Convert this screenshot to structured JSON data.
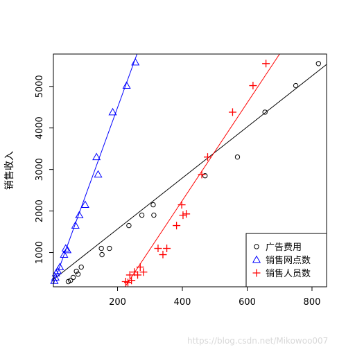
{
  "chart_data": {
    "type": "scatter",
    "title": "",
    "xlabel": "",
    "ylabel": "销售收入",
    "xlim": [
      2,
      845
    ],
    "ylim": [
      175,
      5780
    ],
    "x_ticks": [
      200,
      400,
      600,
      800
    ],
    "y_ticks": [
      1000,
      2000,
      3000,
      4000,
      5000
    ],
    "grid": false,
    "legend_position": "bottom-right",
    "series": [
      {
        "name": "广告费用",
        "marker": "circle",
        "color": "#000000",
        "fit_line": {
          "x": [
            2,
            845
          ],
          "y": [
            350,
            5530
          ]
        },
        "points": [
          {
            "x": 48,
            "y": 300
          },
          {
            "x": 55,
            "y": 330
          },
          {
            "x": 63,
            "y": 400
          },
          {
            "x": 73,
            "y": 550
          },
          {
            "x": 78,
            "y": 480
          },
          {
            "x": 88,
            "y": 650
          },
          {
            "x": 150,
            "y": 1100
          },
          {
            "x": 152,
            "y": 950
          },
          {
            "x": 175,
            "y": 1100
          },
          {
            "x": 235,
            "y": 1650
          },
          {
            "x": 275,
            "y": 1900
          },
          {
            "x": 310,
            "y": 2150
          },
          {
            "x": 312,
            "y": 1900
          },
          {
            "x": 470,
            "y": 2850
          },
          {
            "x": 570,
            "y": 3300
          },
          {
            "x": 655,
            "y": 4380
          },
          {
            "x": 750,
            "y": 5020
          },
          {
            "x": 820,
            "y": 5550
          }
        ]
      },
      {
        "name": "销售网点数",
        "marker": "triangle",
        "color": "#0000ff",
        "fit_line": {
          "x": [
            2,
            260
          ],
          "y": [
            240,
            5780
          ]
        },
        "points": [
          {
            "x": 5,
            "y": 320
          },
          {
            "x": 8,
            "y": 400
          },
          {
            "x": 10,
            "y": 500
          },
          {
            "x": 15,
            "y": 560
          },
          {
            "x": 22,
            "y": 650
          },
          {
            "x": 35,
            "y": 950
          },
          {
            "x": 40,
            "y": 1100
          },
          {
            "x": 45,
            "y": 1060
          },
          {
            "x": 70,
            "y": 1650
          },
          {
            "x": 82,
            "y": 1900
          },
          {
            "x": 100,
            "y": 2150
          },
          {
            "x": 135,
            "y": 3300
          },
          {
            "x": 140,
            "y": 2880
          },
          {
            "x": 185,
            "y": 4380
          },
          {
            "x": 228,
            "y": 5020
          },
          {
            "x": 255,
            "y": 5580
          }
        ]
      },
      {
        "name": "销售人员数",
        "marker": "plus",
        "color": "#ff0000",
        "fit_line": {
          "x": [
            170,
            700
          ],
          "y": [
            -450,
            5780
          ]
        },
        "points": [
          {
            "x": 225,
            "y": 300
          },
          {
            "x": 232,
            "y": 280
          },
          {
            "x": 238,
            "y": 460
          },
          {
            "x": 243,
            "y": 330
          },
          {
            "x": 252,
            "y": 530
          },
          {
            "x": 262,
            "y": 460
          },
          {
            "x": 270,
            "y": 650
          },
          {
            "x": 280,
            "y": 530
          },
          {
            "x": 325,
            "y": 1100
          },
          {
            "x": 340,
            "y": 950
          },
          {
            "x": 352,
            "y": 1100
          },
          {
            "x": 382,
            "y": 1650
          },
          {
            "x": 398,
            "y": 2150
          },
          {
            "x": 402,
            "y": 1900
          },
          {
            "x": 412,
            "y": 1930
          },
          {
            "x": 460,
            "y": 2880
          },
          {
            "x": 478,
            "y": 3300
          },
          {
            "x": 555,
            "y": 4380
          },
          {
            "x": 618,
            "y": 5020
          },
          {
            "x": 658,
            "y": 5550
          }
        ]
      }
    ]
  },
  "watermark": "https://blog.csdn.net/Mikowoo007"
}
